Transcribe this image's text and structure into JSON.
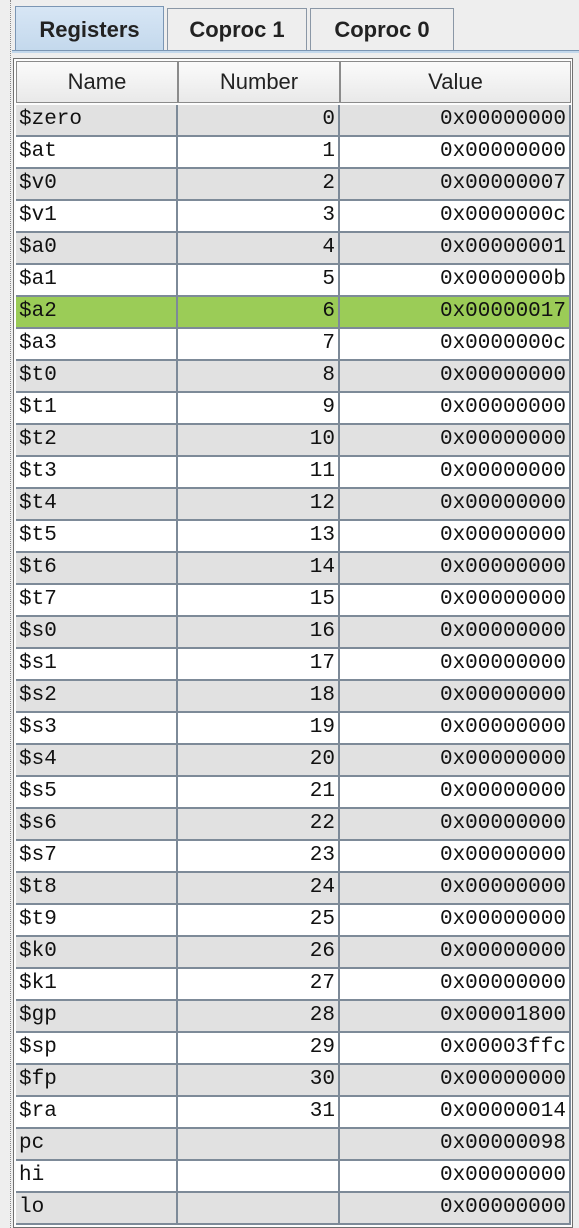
{
  "tabs": [
    {
      "label": "Registers",
      "active": true
    },
    {
      "label": "Coproc 1",
      "active": false
    },
    {
      "label": "Coproc 0",
      "active": false
    }
  ],
  "table": {
    "columns": [
      "Name",
      "Number",
      "Value"
    ],
    "rows": [
      {
        "name": "$zero",
        "number": "0",
        "value": "0x00000000"
      },
      {
        "name": "$at",
        "number": "1",
        "value": "0x00000000"
      },
      {
        "name": "$v0",
        "number": "2",
        "value": "0x00000007"
      },
      {
        "name": "$v1",
        "number": "3",
        "value": "0x0000000c"
      },
      {
        "name": "$a0",
        "number": "4",
        "value": "0x00000001"
      },
      {
        "name": "$a1",
        "number": "5",
        "value": "0x0000000b"
      },
      {
        "name": "$a2",
        "number": "6",
        "value": "0x00000017",
        "highlighted": true
      },
      {
        "name": "$a3",
        "number": "7",
        "value": "0x0000000c"
      },
      {
        "name": "$t0",
        "number": "8",
        "value": "0x00000000"
      },
      {
        "name": "$t1",
        "number": "9",
        "value": "0x00000000"
      },
      {
        "name": "$t2",
        "number": "10",
        "value": "0x00000000"
      },
      {
        "name": "$t3",
        "number": "11",
        "value": "0x00000000"
      },
      {
        "name": "$t4",
        "number": "12",
        "value": "0x00000000"
      },
      {
        "name": "$t5",
        "number": "13",
        "value": "0x00000000"
      },
      {
        "name": "$t6",
        "number": "14",
        "value": "0x00000000"
      },
      {
        "name": "$t7",
        "number": "15",
        "value": "0x00000000"
      },
      {
        "name": "$s0",
        "number": "16",
        "value": "0x00000000"
      },
      {
        "name": "$s1",
        "number": "17",
        "value": "0x00000000"
      },
      {
        "name": "$s2",
        "number": "18",
        "value": "0x00000000"
      },
      {
        "name": "$s3",
        "number": "19",
        "value": "0x00000000"
      },
      {
        "name": "$s4",
        "number": "20",
        "value": "0x00000000"
      },
      {
        "name": "$s5",
        "number": "21",
        "value": "0x00000000"
      },
      {
        "name": "$s6",
        "number": "22",
        "value": "0x00000000"
      },
      {
        "name": "$s7",
        "number": "23",
        "value": "0x00000000"
      },
      {
        "name": "$t8",
        "number": "24",
        "value": "0x00000000"
      },
      {
        "name": "$t9",
        "number": "25",
        "value": "0x00000000"
      },
      {
        "name": "$k0",
        "number": "26",
        "value": "0x00000000"
      },
      {
        "name": "$k1",
        "number": "27",
        "value": "0x00000000"
      },
      {
        "name": "$gp",
        "number": "28",
        "value": "0x00001800"
      },
      {
        "name": "$sp",
        "number": "29",
        "value": "0x00003ffc"
      },
      {
        "name": "$fp",
        "number": "30",
        "value": "0x00000000"
      },
      {
        "name": "$ra",
        "number": "31",
        "value": "0x00000014"
      },
      {
        "name": "pc",
        "number": "",
        "value": "0x00000098"
      },
      {
        "name": "hi",
        "number": "",
        "value": "0x00000000"
      },
      {
        "name": "lo",
        "number": "",
        "value": "0x00000000"
      }
    ]
  },
  "colors": {
    "highlight_row": "#9bcc57",
    "active_tab": "#c3d8ec",
    "odd_row": "#e1e1e1",
    "even_row": "#ffffff"
  }
}
